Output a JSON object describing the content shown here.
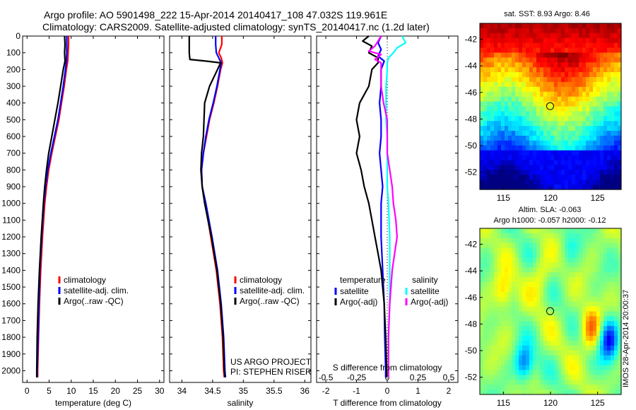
{
  "header": {
    "line1": "Argo profile: AO 5901498_222 15-Apr-2014 20140417_108 47.032S 119.961E",
    "line2": "Climatology: CARS2009. Satellite-adjusted climatology: synTS_20140417.nc (1.2d later)"
  },
  "colors": {
    "climatology": "#ff0000",
    "satellite": "#0000ff",
    "argo": "#000000",
    "salinity_satellite": "#00ffff",
    "salinity_argo": "#ff00ff"
  },
  "chart_data": [
    {
      "type": "line",
      "id": "temperature",
      "xlabel": "temperature (deg C)",
      "xlim": [
        -1,
        31
      ],
      "ylim": [
        2070,
        0
      ],
      "xticks": [
        "0",
        "5",
        "10",
        "15",
        "20",
        "25",
        "30"
      ],
      "yticks": [
        "0",
        "100",
        "200",
        "300",
        "400",
        "500",
        "600",
        "700",
        "800",
        "900",
        "1000",
        "1100",
        "1200",
        "1300",
        "1400",
        "1500",
        "1600",
        "1700",
        "1800",
        "1900",
        "2000"
      ],
      "legend": [
        "climatology",
        "satellite-adj. clim.",
        "Argo(..raw -QC)"
      ],
      "legend_position": "lower-right",
      "series": [
        {
          "name": "climatology",
          "color": "#ff0000",
          "depth": [
            0,
            50,
            100,
            150,
            200,
            300,
            400,
            500,
            600,
            700,
            800,
            900,
            1000,
            1200,
            1400,
            1600,
            1800,
            2000,
            2040
          ],
          "values": [
            9.4,
            9.4,
            9.3,
            9.2,
            8.9,
            8.4,
            7.8,
            7.2,
            6.4,
            5.6,
            4.9,
            4.4,
            4.0,
            3.5,
            3.1,
            2.8,
            2.6,
            2.4,
            2.4
          ]
        },
        {
          "name": "satellite-adj. clim.",
          "color": "#0000ff",
          "depth": [
            0,
            50,
            100,
            150,
            200,
            300,
            400,
            500,
            600,
            700,
            800,
            900,
            1000,
            1200,
            1400,
            1600,
            1800,
            2000,
            2040
          ],
          "values": [
            9.0,
            9.0,
            9.0,
            8.9,
            8.7,
            8.2,
            7.6,
            7.0,
            6.2,
            5.4,
            4.7,
            4.2,
            3.8,
            3.3,
            2.9,
            2.7,
            2.5,
            2.3,
            2.3
          ]
        },
        {
          "name": "Argo(..raw -QC)",
          "color": "#000000",
          "depth": [
            0,
            50,
            100,
            150,
            200,
            300,
            400,
            500,
            600,
            700,
            800,
            900,
            1000,
            1200,
            1400,
            1600,
            1800,
            2000,
            2040
          ],
          "values": [
            8.5,
            8.6,
            8.5,
            8.6,
            8.2,
            7.6,
            7.0,
            6.3,
            5.6,
            4.9,
            4.4,
            4.0,
            3.7,
            3.2,
            2.8,
            2.5,
            2.3,
            2.2,
            2.2
          ]
        }
      ]
    },
    {
      "type": "line",
      "id": "salinity",
      "xlabel": "salinity",
      "xlim": [
        33.8,
        36.1
      ],
      "ylim": [
        2070,
        0
      ],
      "xticks": [
        "34",
        "34.5",
        "35",
        "35.5",
        "36"
      ],
      "legend": [
        "climatology",
        "satellite-adj. clim.",
        "Argo(..raw -QC)"
      ],
      "legend_position": "lower-right",
      "annotations": [
        "US ARGO PROJECT",
        "PI: STEPHEN RISER"
      ],
      "series": [
        {
          "name": "climatology",
          "color": "#ff0000",
          "depth": [
            0,
            50,
            100,
            130,
            160,
            200,
            300,
            400,
            500,
            600,
            700,
            800,
            900,
            1000,
            1200,
            1400,
            1600,
            1800,
            2000,
            2040
          ],
          "values": [
            34.65,
            34.65,
            34.6,
            34.64,
            34.66,
            34.63,
            34.58,
            34.52,
            34.45,
            34.4,
            34.35,
            34.32,
            34.33,
            34.38,
            34.47,
            34.56,
            34.62,
            34.66,
            34.68,
            34.69
          ]
        },
        {
          "name": "satellite-adj. clim.",
          "color": "#0000ff",
          "depth": [
            0,
            50,
            100,
            130,
            160,
            200,
            300,
            400,
            500,
            600,
            700,
            800,
            900,
            1000,
            1200,
            1400,
            1600,
            1800,
            2000,
            2040
          ],
          "values": [
            34.55,
            34.55,
            34.56,
            34.6,
            34.64,
            34.62,
            34.57,
            34.51,
            34.44,
            34.39,
            34.35,
            34.32,
            34.33,
            34.39,
            34.49,
            34.58,
            34.64,
            34.68,
            34.7,
            34.71
          ]
        },
        {
          "name": "Argo(..raw -QC)",
          "color": "#000000",
          "depth": [
            0,
            50,
            100,
            140,
            150,
            160,
            200,
            300,
            400,
            500,
            600,
            700,
            800,
            900,
            1000,
            1200,
            1400,
            1600,
            1800,
            2000,
            2040
          ],
          "values": [
            34.12,
            34.12,
            34.12,
            34.13,
            34.4,
            34.63,
            34.58,
            34.45,
            34.37,
            34.36,
            34.35,
            34.32,
            34.31,
            34.33,
            34.37,
            34.48,
            34.57,
            34.63,
            34.67,
            34.69,
            34.7
          ]
        }
      ]
    },
    {
      "type": "line",
      "id": "difference",
      "xlabel": "T difference from climatology",
      "xlabel_top": "S difference from climatology",
      "xlim": [
        -2.3,
        2.3
      ],
      "ylim": [
        2070,
        0
      ],
      "xticks": [
        "-2",
        "-1",
        "0",
        "1",
        "2"
      ],
      "xticks_top": [
        "-0.5",
        "-0.25",
        "0",
        "0.25",
        "0.5"
      ],
      "legend_headers": [
        "temperature",
        "salinity"
      ],
      "legend": [
        "satellite",
        "Argo(-adj)",
        "satellite",
        "Argo(-adj)"
      ],
      "series": [
        {
          "name": "temperature satellite",
          "color": "#0000ff",
          "depth": [
            0,
            40,
            80,
            120,
            150,
            200,
            300,
            400,
            500,
            600,
            700,
            800,
            900,
            1000,
            1200,
            1400,
            1600,
            1800,
            2000,
            2040
          ],
          "values": [
            -0.2,
            -0.3,
            -0.2,
            -0.3,
            -0.1,
            -0.2,
            -0.2,
            -0.25,
            -0.2,
            -0.2,
            -0.25,
            -0.2,
            -0.15,
            -0.2,
            -0.2,
            -0.15,
            -0.1,
            -0.08,
            -0.05,
            -0.05
          ]
        },
        {
          "name": "temperature Argo(-adj)",
          "color": "#000000",
          "depth": [
            0,
            30,
            60,
            100,
            130,
            160,
            200,
            300,
            400,
            500,
            600,
            700,
            800,
            900,
            1000,
            1100,
            1200,
            1300,
            1400,
            1600,
            1800,
            2000,
            2040
          ],
          "values": [
            -0.6,
            -0.8,
            -0.5,
            -0.6,
            -0.3,
            -0.3,
            -0.5,
            -0.6,
            -0.9,
            -1.0,
            -0.9,
            -1.0,
            -0.85,
            -0.75,
            -0.6,
            -0.5,
            -0.4,
            -0.3,
            -0.2,
            -0.1,
            -0.05,
            -0.02,
            -0.02
          ]
        },
        {
          "name": "salinity satellite",
          "color": "#00ffff",
          "depth": [
            0,
            40,
            70,
            100,
            130,
            160,
            200,
            300,
            400,
            500,
            600,
            700,
            800,
            900,
            1000,
            1200,
            1400,
            1600,
            1800,
            2000,
            2040
          ],
          "values": [
            0.12,
            0.15,
            0.08,
            0.05,
            0.01,
            0.0,
            0.0,
            -0.01,
            -0.01,
            -0.01,
            0.0,
            0.0,
            0.0,
            0.0,
            0.01,
            0.02,
            0.02,
            0.02,
            0.01,
            0.01,
            0.01
          ]
        },
        {
          "name": "salinity Argo(-adj)",
          "color": "#ff00ff",
          "depth": [
            0,
            60,
            90,
            110,
            140,
            160,
            200,
            300,
            400,
            500,
            600,
            700,
            800,
            900,
            1000,
            1100,
            1200,
            1300,
            1400,
            1600,
            1800,
            2000,
            2040
          ],
          "values": [
            -0.05,
            -0.1,
            -0.15,
            -0.05,
            -0.1,
            -0.05,
            -0.05,
            -0.05,
            -0.03,
            0.0,
            0.0,
            0.0,
            0.02,
            0.04,
            0.05,
            0.07,
            0.08,
            0.06,
            0.04,
            0.02,
            0.01,
            0.01,
            0.01
          ]
        }
      ]
    },
    {
      "type": "heatmap",
      "id": "sst_map",
      "title": "sat. SST: 8.93 Argo: 8.46",
      "xlim": [
        112.5,
        127.5
      ],
      "ylim": [
        -53.3,
        -40.8
      ],
      "xticks": [
        "115",
        "120",
        "125"
      ],
      "yticks": [
        "-42",
        "-44",
        "-46",
        "-48",
        "-50",
        "-52"
      ],
      "marker": {
        "lon": 119.961,
        "lat": -47.032
      }
    },
    {
      "type": "heatmap",
      "id": "sla_map",
      "title": "Altim. SLA: -0.063",
      "subtitle": "Argo h1000: -0.057 h2000: -0.12",
      "xlim": [
        112.5,
        127.5
      ],
      "ylim": [
        -53.3,
        -40.8
      ],
      "xticks": [
        "115",
        "120",
        "125"
      ],
      "yticks": [
        "-42",
        "-44",
        "-46",
        "-48",
        "-50",
        "-52"
      ],
      "marker": {
        "lon": 119.961,
        "lat": -47.032
      },
      "side_label": "IMOS 28-Apr-2014 20:00:37"
    }
  ]
}
